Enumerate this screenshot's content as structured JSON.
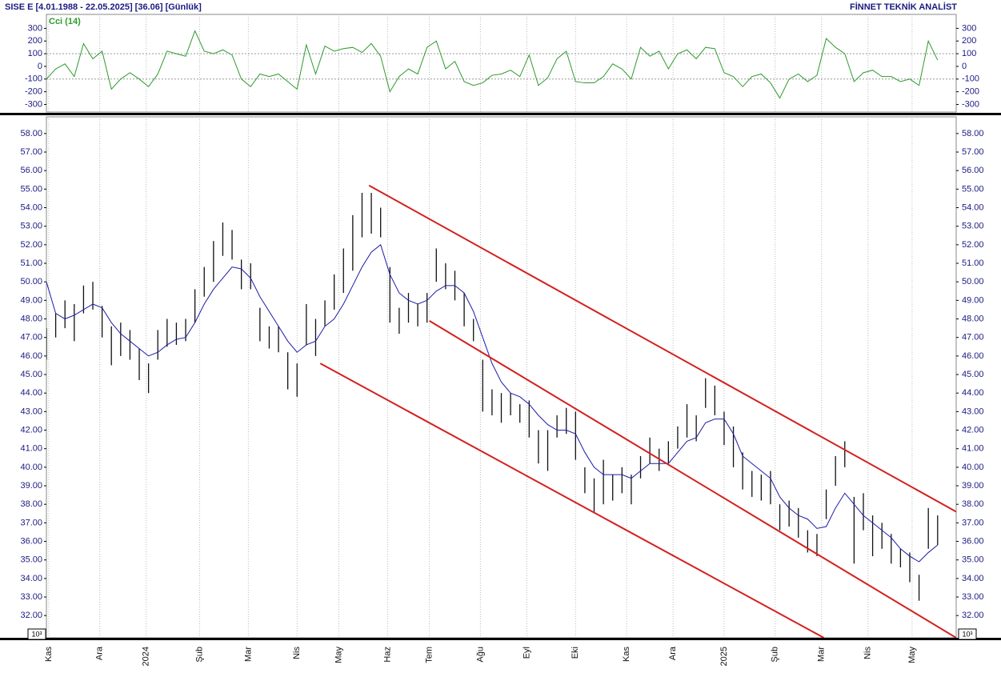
{
  "header": {
    "left": "SISE  E  [4.01.1988 - 22.05.2025]  [36.06]  [Günlük]",
    "right": "FİNNET TEKNİK ANALİST"
  },
  "chart_data": [
    {
      "type": "line",
      "x": [
        0,
        4,
        8,
        12,
        16,
        20,
        24,
        28,
        32,
        36,
        40,
        44,
        48,
        52,
        56,
        60,
        64,
        68,
        72,
        76,
        80,
        84,
        88,
        92,
        96,
        100,
        104,
        108,
        112,
        116,
        120,
        124,
        128,
        132,
        136,
        140,
        144,
        148,
        152,
        156,
        160,
        164,
        168,
        172,
        176,
        180,
        184,
        188,
        192,
        196,
        200,
        204,
        208,
        212,
        216,
        220,
        224,
        228,
        232,
        236,
        240,
        244,
        248,
        252,
        256,
        260,
        264,
        268,
        272,
        276,
        280,
        284,
        288,
        292,
        296,
        300,
        304,
        308,
        312,
        316,
        320,
        324,
        328,
        332,
        336,
        340,
        344,
        348,
        352,
        356,
        360,
        364,
        368,
        372,
        376,
        380,
        384
      ],
      "series": [
        {
          "name": "Cci (14)",
          "color": "#2e9a2e",
          "values": [
            -100,
            -20,
            20,
            -80,
            180,
            60,
            120,
            -180,
            -100,
            -50,
            -100,
            -160,
            -60,
            120,
            100,
            80,
            280,
            120,
            100,
            130,
            90,
            -100,
            -160,
            -60,
            -80,
            -60,
            -120,
            -180,
            170,
            -60,
            160,
            120,
            140,
            150,
            110,
            180,
            80,
            -200,
            -80,
            -20,
            -60,
            150,
            200,
            -20,
            40,
            -120,
            -150,
            -130,
            -70,
            -60,
            -30,
            -80,
            90,
            -150,
            -90,
            60,
            120,
            -120,
            -130,
            -130,
            -80,
            20,
            -20,
            -100,
            150,
            80,
            120,
            -20,
            100,
            130,
            60,
            150,
            140,
            -50,
            -80,
            -160,
            -80,
            -60,
            -130,
            -250,
            -100,
            -60,
            -120,
            -70,
            220,
            150,
            100,
            -120,
            -50,
            -30,
            -80,
            -80,
            -120,
            -100,
            -150,
            200,
            50
          ]
        }
      ],
      "xlim": [
        0,
        392
      ],
      "ylim": [
        -360,
        410
      ],
      "yticks": [
        300,
        200,
        100,
        0,
        -100,
        -200,
        -300
      ],
      "ref_lines": [
        100,
        -100
      ]
    },
    {
      "type": "ohlc",
      "x": [
        0,
        4,
        8,
        12,
        16,
        20,
        24,
        28,
        32,
        36,
        40,
        44,
        48,
        52,
        56,
        60,
        64,
        68,
        72,
        76,
        80,
        84,
        88,
        92,
        96,
        100,
        104,
        108,
        112,
        116,
        120,
        124,
        128,
        132,
        136,
        140,
        144,
        148,
        152,
        156,
        160,
        164,
        168,
        172,
        176,
        180,
        184,
        188,
        192,
        196,
        200,
        204,
        208,
        212,
        216,
        220,
        224,
        228,
        232,
        236,
        240,
        244,
        248,
        252,
        256,
        260,
        264,
        268,
        272,
        276,
        280,
        284,
        288,
        292,
        296,
        300,
        304,
        308,
        312,
        316,
        320,
        324,
        328,
        332,
        336,
        340,
        344,
        348,
        352,
        356,
        360,
        364,
        368,
        372,
        376,
        380,
        384
      ],
      "high": [
        47.5,
        48.3,
        49,
        48.8,
        49.8,
        50,
        48.7,
        47.6,
        47.8,
        47.4,
        46.4,
        45.6,
        47.4,
        48,
        47.8,
        48,
        49.6,
        50.8,
        52.2,
        53.2,
        52.8,
        51.2,
        51,
        48.6,
        47.6,
        47.6,
        46.2,
        45.6,
        48.8,
        48,
        49,
        50.4,
        51.8,
        53.6,
        54.8,
        54.8,
        54,
        50.8,
        48.6,
        49.4,
        48.8,
        49.4,
        51.8,
        51,
        50.6,
        49.4,
        48,
        45.8,
        44.2,
        44,
        44,
        43.4,
        43.6,
        42,
        42,
        42.8,
        43.2,
        43,
        40,
        39.4,
        40.4,
        39.6,
        40,
        39.6,
        40.6,
        41.6,
        41,
        41.4,
        42.2,
        43.4,
        42.8,
        44.8,
        44.4,
        43,
        42.2,
        40.8,
        39.8,
        39.6,
        39.8,
        38,
        38.2,
        37.8,
        36.6,
        36.4,
        38.8,
        40.6,
        41.4,
        38.4,
        38.6,
        37.4,
        37,
        36.4,
        35.6,
        35.4,
        34.2,
        37.8,
        37.4
      ],
      "low": [
        45.8,
        47,
        47.5,
        46.8,
        48.3,
        48.5,
        47,
        45.5,
        46,
        45.8,
        44.7,
        44,
        45.8,
        46.5,
        46.6,
        46.8,
        47.8,
        49.2,
        50,
        51.4,
        51.2,
        49.6,
        49.6,
        46.8,
        46.4,
        46.2,
        44.2,
        43.8,
        46.6,
        46,
        47.6,
        48.5,
        49.4,
        50.6,
        52.4,
        52.6,
        52.4,
        47.8,
        47.2,
        47.8,
        47.6,
        47.8,
        50,
        49.6,
        49,
        47.6,
        46.8,
        43,
        42.8,
        42.4,
        42.8,
        42.4,
        41.6,
        40.2,
        39.8,
        41.6,
        41.8,
        40.4,
        38.6,
        37.6,
        38,
        38.2,
        38.6,
        38,
        39.4,
        40.2,
        39.8,
        40.2,
        41,
        41.6,
        41.4,
        43.2,
        42.8,
        41.2,
        40,
        38.8,
        38.4,
        38.2,
        38,
        36.6,
        36.8,
        36.2,
        35.4,
        35.2,
        37.2,
        39,
        40,
        34.8,
        36.6,
        35.2,
        35.6,
        34.8,
        34.6,
        33.8,
        32.8,
        35.6,
        35.8
      ],
      "color": "#111111",
      "ma": {
        "color": "#1c1ca8",
        "values": [
          50,
          48.3,
          48,
          48.2,
          48.5,
          48.8,
          48.6,
          47.8,
          47.2,
          46.8,
          46.4,
          46,
          46.2,
          46.6,
          46.9,
          47,
          47.8,
          48.8,
          49.6,
          50.2,
          50.8,
          50.7,
          50.2,
          49.2,
          48.4,
          47.6,
          46.8,
          46.2,
          46.6,
          46.8,
          47.6,
          48,
          48.8,
          49.8,
          50.8,
          51.6,
          52,
          50.4,
          49.4,
          49,
          48.8,
          49,
          49.5,
          49.8,
          49.8,
          49.4,
          48.4,
          47,
          45.6,
          44.6,
          44,
          43.8,
          43.4,
          42.8,
          42.3,
          42,
          42,
          41.8,
          40.8,
          40,
          39.6,
          39.6,
          39.6,
          39.4,
          39.8,
          40.2,
          40.2,
          40.2,
          40.8,
          41.4,
          41.6,
          42.4,
          42.6,
          42.6,
          41.8,
          40.6,
          40.2,
          39.8,
          39.4,
          38.4,
          37.8,
          37.4,
          37.2,
          36.7,
          36.8,
          37.8,
          38.6,
          38,
          37.4,
          37,
          36.6,
          36.2,
          35.6,
          35.2,
          34.9,
          35.4,
          35.8
        ]
      },
      "channels": [
        {
          "color": "#d42020",
          "x": [
            139,
            392
          ],
          "y": [
            55.2,
            37.6
          ]
        },
        {
          "color": "#d42020",
          "x": [
            165,
            392
          ],
          "y": [
            47.9,
            30.8
          ]
        },
        {
          "color": "#d42020",
          "x": [
            118,
            335
          ],
          "y": [
            45.6,
            30.8
          ]
        }
      ],
      "scale_note": "10³",
      "xlim": [
        0,
        392
      ],
      "ylim": [
        30.8,
        58.9
      ],
      "yticks": [
        {
          "value": 32,
          "label": "32.00"
        },
        {
          "value": 33,
          "label": "33.00"
        },
        {
          "value": 34,
          "label": "34.00"
        },
        {
          "value": 35,
          "label": "35.00"
        },
        {
          "value": 36,
          "label": "36.00"
        },
        {
          "value": 37,
          "label": "37.00"
        },
        {
          "value": 38,
          "label": "38.00"
        },
        {
          "value": 39,
          "label": "39.00"
        },
        {
          "value": 40,
          "label": "40.00"
        },
        {
          "value": 41,
          "label": "41.00"
        },
        {
          "value": 42,
          "label": "42.00"
        },
        {
          "value": 43,
          "label": "43.00"
        },
        {
          "value": 44,
          "label": "44.00"
        },
        {
          "value": 45,
          "label": "45.00"
        },
        {
          "value": 46,
          "label": "46.00"
        },
        {
          "value": 47,
          "label": "47.00"
        },
        {
          "value": 48,
          "label": "48.00"
        },
        {
          "value": 49,
          "label": "49.00"
        },
        {
          "value": 50,
          "label": "50.00"
        },
        {
          "value": 51,
          "label": "51.00"
        },
        {
          "value": 52,
          "label": "52.00"
        },
        {
          "value": 53,
          "label": "53.00"
        },
        {
          "value": 54,
          "label": "54.00"
        },
        {
          "value": 55,
          "label": "55.00"
        },
        {
          "value": 56,
          "label": "56.00"
        },
        {
          "value": 57,
          "label": "57.00"
        },
        {
          "value": 58,
          "label": "58.00"
        }
      ],
      "xticks": [
        {
          "value": 1,
          "label": "Kas"
        },
        {
          "value": 23,
          "label": "Ara"
        },
        {
          "value": 43,
          "label": "2024"
        },
        {
          "value": 66,
          "label": "Şub"
        },
        {
          "value": 87,
          "label": "Mar"
        },
        {
          "value": 108,
          "label": "Nis"
        },
        {
          "value": 126,
          "label": "May"
        },
        {
          "value": 147,
          "label": "Haz"
        },
        {
          "value": 165,
          "label": "Tem"
        },
        {
          "value": 187,
          "label": "Ağu"
        },
        {
          "value": 207,
          "label": "Eyl"
        },
        {
          "value": 228,
          "label": "Eki"
        },
        {
          "value": 250,
          "label": "Kas"
        },
        {
          "value": 270,
          "label": "Ara"
        },
        {
          "value": 292,
          "label": "2025"
        },
        {
          "value": 314,
          "label": "Şub"
        },
        {
          "value": 334,
          "label": "Mar"
        },
        {
          "value": 354,
          "label": "Nis"
        },
        {
          "value": 373,
          "label": "May"
        }
      ]
    }
  ]
}
